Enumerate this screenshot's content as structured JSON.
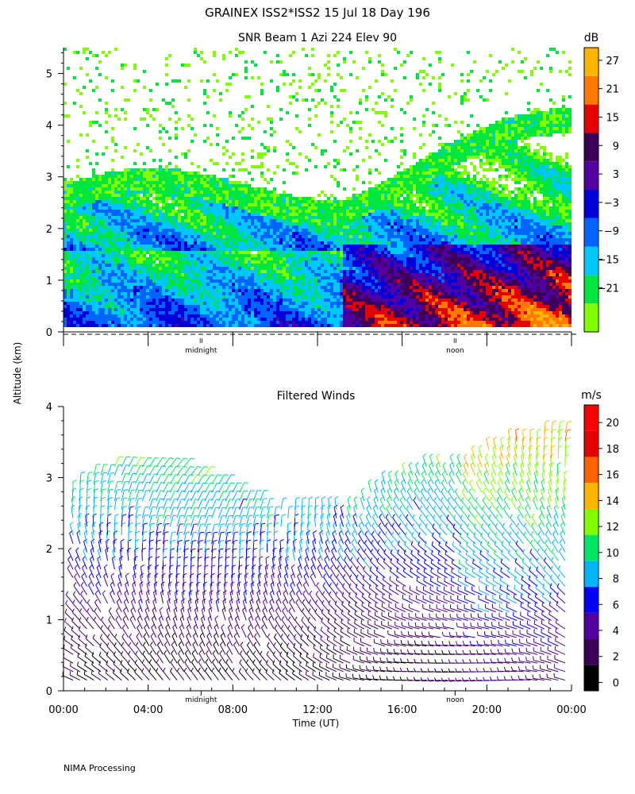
{
  "header": {
    "title": "GRAINEX ISS2*ISS2  15 Jul 18 Day 196"
  },
  "footer": {
    "credit": "NIMA Processing"
  },
  "chart_data": [
    {
      "type": "heatmap",
      "title": "SNR Beam 1 Azi 224 Elev 90",
      "xlabel": "",
      "ylabel": "Altitude (km)",
      "ylim": [
        0,
        5.5
      ],
      "yticks": [
        "0",
        "1",
        "2",
        "3",
        "4",
        "5"
      ],
      "time_markers": [
        "midnight",
        "noon"
      ],
      "colorbar": {
        "unit": "dB",
        "ticks": [
          "27",
          "21",
          "15",
          "9",
          "3",
          "−3",
          "−9",
          "−15",
          "−21"
        ],
        "colors": [
          "#80ff00",
          "#00e640",
          "#00c8ff",
          "#0064ff",
          "#0000dc",
          "#5000a0",
          "#3c005a",
          "#e60000",
          "#ff7800",
          "#ffb400"
        ]
      }
    },
    {
      "type": "scatter",
      "title": "Filtered Winds",
      "xlabel": "Time (UT)",
      "ylabel": "Altitude (km)",
      "ylim": [
        0,
        4
      ],
      "yticks": [
        "0",
        "1",
        "2",
        "3",
        "4"
      ],
      "xticks": [
        "00:00",
        "04:00",
        "08:00",
        "12:00",
        "16:00",
        "20:00",
        "00:00"
      ],
      "time_markers": [
        "midnight",
        "noon"
      ],
      "colorbar": {
        "unit": "m/s",
        "ticks": [
          "20",
          "18",
          "16",
          "14",
          "12",
          "10",
          "8",
          "6",
          "4",
          "2",
          "0"
        ],
        "colors": [
          "#000000",
          "#3c005a",
          "#5000a0",
          "#0000ff",
          "#00b4ff",
          "#00e664",
          "#80ff00",
          "#ffb400",
          "#ff6400",
          "#e60000",
          "#ff0000"
        ]
      }
    }
  ]
}
